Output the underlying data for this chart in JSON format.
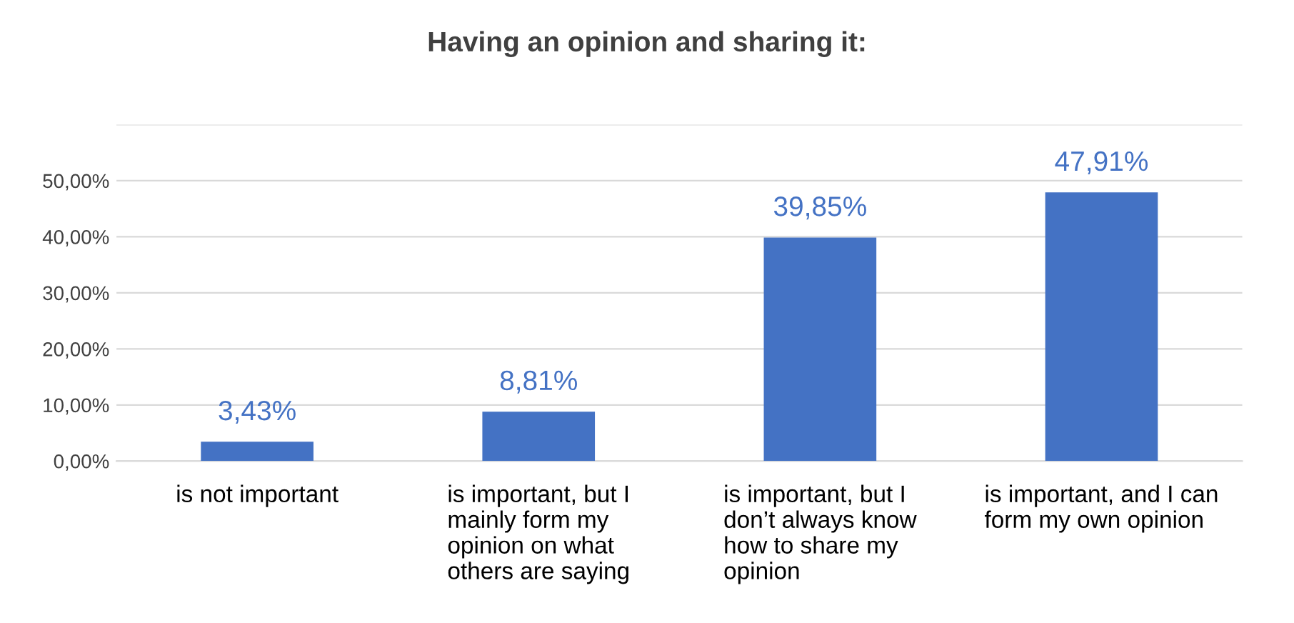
{
  "chart_data": {
    "type": "bar",
    "title": "Having an opinion and sharing it:",
    "categories": [
      "is not important",
      "is important, but I\nmainly form my\nopinion on what\nothers are saying",
      "is important, but I\ndon’t always know\nhow to share my\nopinion",
      "is important, and I can\nform my own opinion"
    ],
    "values": [
      3.43,
      8.81,
      39.85,
      47.91
    ],
    "value_labels": [
      "3,43%",
      "8,81%",
      "39,85%",
      "47,91%"
    ],
    "color": "#4472c4",
    "ylim": [
      0,
      60
    ],
    "yticks": [
      {
        "value": 0,
        "label": "0,00%"
      },
      {
        "value": 10,
        "label": "10,00%"
      },
      {
        "value": 20,
        "label": "20,00%"
      },
      {
        "value": 30,
        "label": "30,00%"
      },
      {
        "value": 40,
        "label": "40,00%"
      },
      {
        "value": 50,
        "label": "50,00%"
      },
      {
        "value": 60,
        "label": null
      }
    ],
    "grid": "y"
  }
}
